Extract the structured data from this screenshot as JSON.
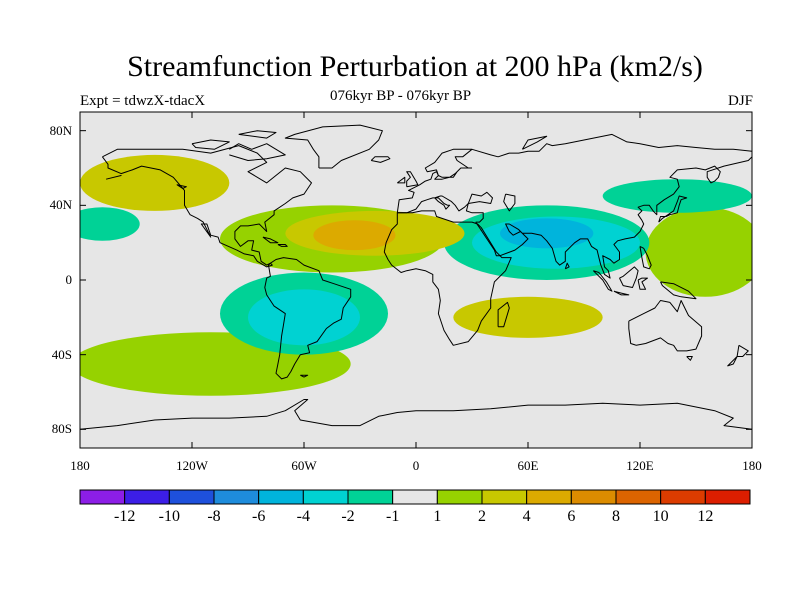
{
  "title": "Streamfunction Perturbation at 200 hPa (km2/s)",
  "left_string": "Expt = tdwzX-tdacX",
  "center_string": "076kyr BP - 076kyr BP",
  "right_string": "DJF",
  "colors": {
    "land_outline": "#000000",
    "neutral": "#e6e6e6"
  },
  "chart_data": {
    "type": "contour-map",
    "variable": "Streamfunction perturbation",
    "units": "km2/s",
    "level": "200 hPa",
    "season": "DJF",
    "x_axis": {
      "range": [
        -180,
        180
      ],
      "ticks": [
        {
          "value": -180,
          "label": "180"
        },
        {
          "value": -120,
          "label": "120W"
        },
        {
          "value": -60,
          "label": "60W"
        },
        {
          "value": 0,
          "label": "0"
        },
        {
          "value": 60,
          "label": "60E"
        },
        {
          "value": 120,
          "label": "120E"
        },
        {
          "value": 180,
          "label": "180"
        }
      ]
    },
    "y_axis": {
      "range": [
        -90,
        90
      ],
      "ticks": [
        {
          "value": 80,
          "label": "80N"
        },
        {
          "value": 40,
          "label": "40N"
        },
        {
          "value": 0,
          "label": "0"
        },
        {
          "value": -40,
          "label": "40S"
        },
        {
          "value": -80,
          "label": "80S"
        }
      ]
    },
    "colorbar": {
      "colors": [
        "#8c1ee6",
        "#3c1ee6",
        "#1e50dc",
        "#1e8cdc",
        "#00b4dc",
        "#00d2d2",
        "#00d296",
        "#e6e6e6",
        "#96d200",
        "#c8c800",
        "#dcaa00",
        "#dc8c00",
        "#dc6400",
        "#dc3c00",
        "#dc1e00"
      ],
      "labels": [
        "-12",
        "-10",
        "-8",
        "-6",
        "-4",
        "-2",
        "-1",
        "1",
        "2",
        "4",
        "6",
        "8",
        "10",
        "12"
      ]
    },
    "anomaly_regions": [
      {
        "lon": 155,
        "lat": 15,
        "rx": 32,
        "ry": 24,
        "level": 1
      },
      {
        "lon": -110,
        "lat": -45,
        "rx": 75,
        "ry": 17,
        "level": 1
      },
      {
        "lon": -45,
        "lat": 22,
        "rx": 60,
        "ry": 18,
        "level": 1
      },
      {
        "lon": 70,
        "lat": 20,
        "rx": 55,
        "ry": 20,
        "level": -1
      },
      {
        "lon": -60,
        "lat": -18,
        "rx": 45,
        "ry": 22,
        "level": -1
      },
      {
        "lon": -168,
        "lat": 30,
        "rx": 20,
        "ry": 9,
        "level": -1
      },
      {
        "lon": 140,
        "lat": 45,
        "rx": 40,
        "ry": 9,
        "level": -1
      },
      {
        "lon": -140,
        "lat": 52,
        "rx": 40,
        "ry": 15,
        "level": 2
      },
      {
        "lon": -22,
        "lat": 25,
        "rx": 48,
        "ry": 12,
        "level": 2
      },
      {
        "lon": 60,
        "lat": -20,
        "rx": 40,
        "ry": 11,
        "level": 2
      },
      {
        "lon": 75,
        "lat": 20,
        "rx": 45,
        "ry": 14,
        "level": -2
      },
      {
        "lon": -60,
        "lat": -20,
        "rx": 30,
        "ry": 15,
        "level": -2
      },
      {
        "lon": -33,
        "lat": 24,
        "rx": 22,
        "ry": 8,
        "level": 4
      },
      {
        "lon": 70,
        "lat": 25,
        "rx": 25,
        "ry": 8,
        "level": -4
      }
    ]
  }
}
